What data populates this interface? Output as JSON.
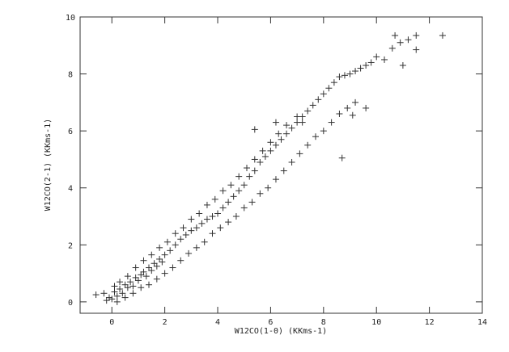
{
  "chart_data": {
    "type": "scatter",
    "title": "",
    "xlabel": "W12CO(1-0) (KKms-1)",
    "ylabel": "W12CO(2-1) (KKms-1)",
    "xlim": [
      -1.2,
      14
    ],
    "ylim": [
      -0.4,
      10
    ],
    "xticks": [
      0,
      2,
      4,
      6,
      8,
      10,
      12,
      14
    ],
    "yticks": [
      0,
      2,
      4,
      6,
      8,
      10
    ],
    "xtick_labels": [
      "0",
      "2",
      "4",
      "6",
      "8",
      "10",
      "12",
      "14"
    ],
    "ytick_labels": [
      "0",
      "2",
      "4",
      "6",
      "8",
      "10"
    ],
    "grid": false,
    "marker": "+",
    "color": "#333333",
    "series": [
      {
        "values": [
          [
            -0.6,
            0.25
          ],
          [
            -0.3,
            0.3
          ],
          [
            -0.2,
            0.05
          ],
          [
            -0.1,
            0.15
          ],
          [
            0.0,
            0.1
          ],
          [
            0.1,
            0.35
          ],
          [
            0.2,
            0.2
          ],
          [
            0.3,
            0.45
          ],
          [
            0.4,
            0.3
          ],
          [
            0.5,
            0.6
          ],
          [
            0.6,
            0.5
          ],
          [
            0.7,
            0.7
          ],
          [
            0.8,
            0.55
          ],
          [
            0.9,
            0.85
          ],
          [
            1.0,
            0.75
          ],
          [
            1.1,
            0.95
          ],
          [
            1.2,
            1.05
          ],
          [
            1.3,
            0.9
          ],
          [
            1.4,
            1.2
          ],
          [
            1.5,
            1.1
          ],
          [
            1.6,
            1.35
          ],
          [
            1.7,
            1.25
          ],
          [
            1.8,
            1.5
          ],
          [
            1.9,
            1.4
          ],
          [
            2.0,
            1.65
          ],
          [
            2.2,
            1.8
          ],
          [
            2.4,
            2.0
          ],
          [
            2.6,
            2.2
          ],
          [
            2.8,
            2.35
          ],
          [
            3.0,
            2.5
          ],
          [
            3.2,
            2.6
          ],
          [
            3.4,
            2.75
          ],
          [
            3.6,
            2.9
          ],
          [
            3.8,
            3.0
          ],
          [
            4.0,
            3.1
          ],
          [
            4.2,
            3.3
          ],
          [
            4.4,
            3.5
          ],
          [
            4.6,
            3.7
          ],
          [
            4.8,
            3.9
          ],
          [
            5.0,
            4.1
          ],
          [
            5.2,
            4.4
          ],
          [
            5.4,
            4.6
          ],
          [
            5.6,
            4.9
          ],
          [
            5.8,
            5.1
          ],
          [
            6.0,
            5.3
          ],
          [
            6.2,
            5.5
          ],
          [
            6.4,
            5.7
          ],
          [
            6.6,
            5.9
          ],
          [
            6.8,
            6.1
          ],
          [
            7.0,
            6.3
          ],
          [
            7.2,
            6.5
          ],
          [
            7.4,
            6.7
          ],
          [
            7.6,
            6.9
          ],
          [
            7.8,
            7.1
          ],
          [
            8.0,
            7.3
          ],
          [
            8.2,
            7.5
          ],
          [
            8.4,
            7.7
          ],
          [
            8.6,
            7.9
          ],
          [
            8.8,
            7.95
          ],
          [
            9.0,
            8.0
          ],
          [
            9.2,
            8.1
          ],
          [
            9.4,
            8.2
          ],
          [
            9.6,
            8.3
          ],
          [
            9.8,
            8.4
          ],
          [
            10.0,
            8.6
          ],
          [
            10.3,
            8.5
          ],
          [
            10.6,
            8.9
          ],
          [
            10.9,
            9.1
          ],
          [
            11.2,
            9.2
          ],
          [
            11.5,
            9.35
          ],
          [
            12.5,
            9.35
          ],
          [
            0.2,
            0.0
          ],
          [
            0.5,
            0.15
          ],
          [
            0.8,
            0.3
          ],
          [
            1.1,
            0.5
          ],
          [
            1.4,
            0.6
          ],
          [
            1.7,
            0.8
          ],
          [
            2.0,
            1.0
          ],
          [
            2.3,
            1.2
          ],
          [
            2.6,
            1.45
          ],
          [
            2.9,
            1.7
          ],
          [
            3.2,
            1.9
          ],
          [
            3.5,
            2.1
          ],
          [
            3.8,
            2.4
          ],
          [
            4.1,
            2.6
          ],
          [
            4.4,
            2.8
          ],
          [
            4.7,
            3.0
          ],
          [
            5.0,
            3.3
          ],
          [
            5.3,
            3.5
          ],
          [
            5.6,
            3.8
          ],
          [
            5.9,
            4.0
          ],
          [
            6.2,
            4.3
          ],
          [
            6.5,
            4.6
          ],
          [
            6.8,
            4.9
          ],
          [
            7.1,
            5.2
          ],
          [
            7.4,
            5.5
          ],
          [
            7.7,
            5.8
          ],
          [
            8.0,
            6.0
          ],
          [
            8.3,
            6.3
          ],
          [
            8.6,
            6.6
          ],
          [
            8.9,
            6.8
          ],
          [
            9.2,
            7.0
          ],
          [
            9.6,
            6.8
          ],
          [
            0.1,
            0.55
          ],
          [
            0.3,
            0.7
          ],
          [
            0.6,
            0.9
          ],
          [
            0.9,
            1.2
          ],
          [
            1.2,
            1.45
          ],
          [
            1.5,
            1.65
          ],
          [
            1.8,
            1.9
          ],
          [
            2.1,
            2.1
          ],
          [
            2.4,
            2.4
          ],
          [
            2.7,
            2.6
          ],
          [
            3.0,
            2.9
          ],
          [
            3.3,
            3.1
          ],
          [
            3.6,
            3.4
          ],
          [
            3.9,
            3.6
          ],
          [
            4.2,
            3.9
          ],
          [
            4.5,
            4.1
          ],
          [
            4.8,
            4.4
          ],
          [
            5.1,
            4.7
          ],
          [
            5.4,
            5.0
          ],
          [
            5.7,
            5.3
          ],
          [
            6.0,
            5.6
          ],
          [
            6.3,
            5.9
          ],
          [
            6.6,
            6.2
          ],
          [
            7.0,
            6.5
          ],
          [
            5.4,
            6.05
          ],
          [
            6.2,
            6.3
          ],
          [
            7.2,
            6.3
          ],
          [
            8.7,
            5.05
          ],
          [
            9.1,
            6.55
          ],
          [
            11.0,
            8.3
          ],
          [
            11.5,
            8.85
          ],
          [
            10.7,
            9.35
          ]
        ]
      }
    ]
  }
}
